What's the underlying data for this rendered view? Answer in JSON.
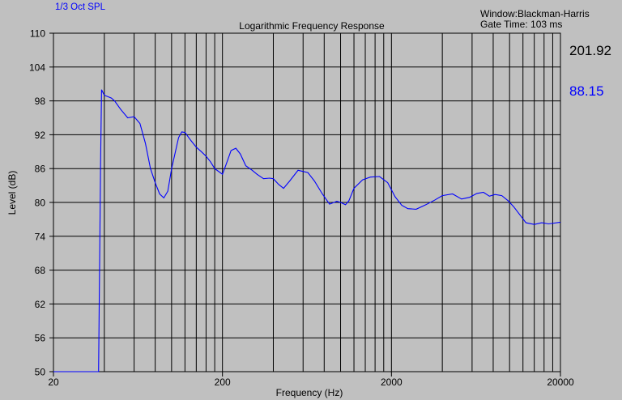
{
  "header": {
    "series_label": "1/3 Oct SPL",
    "window_info": "Window:Blackman-Harris",
    "gate_info": "Gate Time: 103 ms",
    "readout_freq": "201.92",
    "readout_level": "88.15"
  },
  "colors": {
    "background": "#c0c0c0",
    "trace": "#0000ff",
    "readout_level": "#0000ff",
    "axis_text": "#000000"
  },
  "chart_data": {
    "type": "line",
    "title": "Logarithmic Frequency Response",
    "xlabel": "Frequency (Hz)",
    "ylabel": "Level (dB)",
    "xscale": "log",
    "xlim": [
      20,
      20000
    ],
    "ylim": [
      50,
      110
    ],
    "grid": true,
    "x_ticks": [
      20,
      200,
      2000,
      20000
    ],
    "x_tick_labels": [
      "20",
      "200",
      "2000",
      "20000"
    ],
    "y_ticks": [
      50,
      56,
      62,
      68,
      74,
      80,
      86,
      92,
      98,
      104,
      110
    ],
    "y_tick_labels": [
      "50",
      "56",
      "62",
      "68",
      "74",
      "80",
      "86",
      "92",
      "98",
      "104",
      "110"
    ],
    "series": [
      {
        "x": [
          20,
          37,
          38,
          38.5,
          40,
          44,
          46,
          50,
          55,
          60,
          65,
          70,
          75,
          80,
          85,
          90,
          95,
          100,
          110,
          115,
          120,
          130,
          140,
          150,
          160,
          170,
          180,
          200,
          210,
          225,
          240,
          255,
          275,
          300,
          320,
          350,
          380,
          400,
          430,
          460,
          500,
          560,
          640,
          700,
          780,
          860,
          950,
          1000,
          1070,
          1120,
          1200,
          1350,
          1500,
          1700,
          1900,
          2100,
          2300,
          2500,
          2800,
          3200,
          3600,
          4000,
          4600,
          5200,
          5800,
          6400,
          7000,
          7600,
          8200,
          9000,
          9800,
          10600,
          11500,
          12500,
          14000,
          15500,
          17000,
          20000
        ],
        "y": [
          50,
          50,
          87,
          100,
          99,
          98.5,
          98,
          96.5,
          95,
          95.2,
          94,
          90.5,
          86,
          83.5,
          81.5,
          80.8,
          82,
          86,
          91.5,
          92.5,
          92.4,
          91,
          89.8,
          89,
          88.2,
          87.2,
          86,
          85,
          86.7,
          89.2,
          89.6,
          88.6,
          86.5,
          85.7,
          85,
          84.2,
          84.3,
          84.2,
          83.2,
          82.5,
          83.8,
          85.7,
          85.3,
          83.8,
          81.5,
          79.7,
          80.2,
          80,
          79.6,
          80.3,
          82.5,
          84,
          84.5,
          84.6,
          83.5,
          81,
          79.5,
          78.9,
          78.8,
          79.6,
          80.4,
          81.2,
          81.5,
          80.6,
          80.9,
          81.6,
          81.8,
          81.1,
          81.4,
          81.2,
          80.3,
          79.2,
          77.8,
          76.4,
          76.1,
          76.4,
          76.2,
          76.5
        ]
      }
    ]
  }
}
